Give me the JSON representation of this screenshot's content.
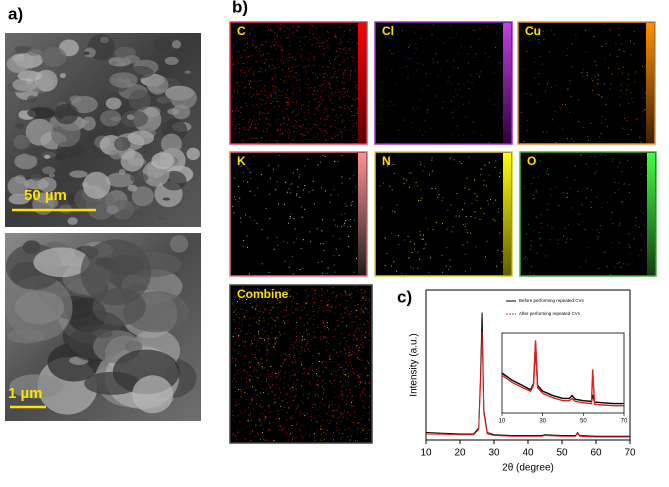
{
  "panels": {
    "a": "a)",
    "b": "b)",
    "c": "c)"
  },
  "sem": [
    {
      "scale_label": "50 µm"
    },
    {
      "scale_label": "1 µm"
    }
  ],
  "maps": [
    {
      "label": "C",
      "color": "#e8405a",
      "bar": [
        "#ff0000",
        "#600000"
      ],
      "dot": "#d02020"
    },
    {
      "label": "Cl",
      "color": "#a030c0",
      "bar": [
        "#c040e0",
        "#300040"
      ],
      "dot": "#8030a0"
    },
    {
      "label": "Cu",
      "color": "#e89030",
      "bar": [
        "#ff9000",
        "#402000"
      ],
      "dot": "#c07020"
    },
    {
      "label": "K",
      "color": "#e07080",
      "bar": [
        "#ff9090",
        "#202020"
      ],
      "dot": "#e0e0c0"
    },
    {
      "label": "N",
      "color": "#d8c830",
      "bar": [
        "#ffff00",
        "#606000"
      ],
      "dot": "#e0e040"
    },
    {
      "label": "O",
      "color": "#40b040",
      "bar": [
        "#40ff40",
        "#104010"
      ],
      "dot": "#40a040"
    },
    {
      "label": "Combine",
      "color": "#444444",
      "dot": "#d02020"
    }
  ],
  "chart_data": {
    "type": "line",
    "xlabel": "2θ (degree)",
    "ylabel": "Intensity (a.u.)",
    "xlim": [
      10,
      70
    ],
    "xticks": [
      10,
      20,
      30,
      40,
      50,
      60,
      70
    ],
    "ylim": [
      0,
      100
    ],
    "legend": "top-right",
    "x": [
      10,
      15,
      20,
      24,
      25.5,
      26,
      26.5,
      27,
      28,
      30,
      35,
      40,
      44,
      45,
      50,
      54,
      54.6,
      55.2,
      60,
      65,
      70
    ],
    "series": [
      {
        "name": "Before performing repeated CVs",
        "color": "#000000",
        "values": [
          5,
          4.5,
          4,
          4,
          8,
          40,
          85,
          20,
          5,
          3.5,
          3,
          3,
          3,
          3.5,
          3,
          3,
          5,
          3,
          2.5,
          2.5,
          2.5
        ]
      },
      {
        "name": "After performing repeated CVs",
        "color": "#e02020",
        "values": [
          4,
          3.8,
          3.5,
          3.5,
          7,
          35,
          72,
          18,
          4,
          3,
          2.5,
          2.5,
          2.5,
          3,
          2.5,
          2.5,
          4.5,
          2.5,
          2,
          2,
          2
        ]
      }
    ],
    "inset": {
      "xlim": [
        10,
        70
      ],
      "xticks": [
        10,
        30,
        50,
        70
      ],
      "ylim": [
        0,
        110
      ],
      "x": [
        10,
        15,
        20,
        24,
        25.5,
        26.5,
        27.5,
        30,
        35,
        40,
        43,
        44.5,
        46,
        50,
        54,
        54.6,
        55.5,
        60,
        65,
        70
      ],
      "series": [
        {
          "color": "#000000",
          "values": [
            55,
            45,
            38,
            32,
            40,
            95,
            38,
            30,
            24,
            20,
            20,
            24,
            19,
            17,
            16,
            25,
            15,
            14,
            13,
            13
          ]
        },
        {
          "color": "#e02020",
          "values": [
            52,
            42,
            35,
            30,
            38,
            100,
            35,
            27,
            21,
            17,
            17,
            20,
            16,
            14,
            13,
            60,
            12,
            11,
            10,
            10
          ]
        }
      ]
    }
  }
}
